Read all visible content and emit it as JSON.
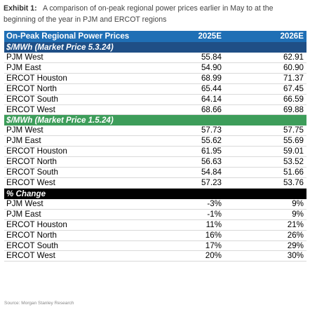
{
  "caption": {
    "label": "Exhibit 1:",
    "text": "A comparison of on-peak regional power prices earlier in May to at the beginning of the year in PJM and ERCOT regions"
  },
  "table": {
    "header": [
      "On-Peak Regional Power Prices",
      "2025E",
      "2026E"
    ],
    "sections": [
      {
        "title": "$/MWh (Market Price 5.3.24)",
        "rows": [
          [
            "PJM West",
            "55.84",
            "62.91"
          ],
          [
            "PJM East",
            "54.90",
            "60.90"
          ],
          [
            "ERCOT Houston",
            "68.99",
            "71.37"
          ],
          [
            "ERCOT North",
            "65.44",
            "67.45"
          ],
          [
            "ERCOT South",
            "64.14",
            "66.59"
          ],
          [
            "ERCOT West",
            "68.66",
            "69.88"
          ]
        ]
      },
      {
        "title": "$/MWh (Market Price 1.5.24)",
        "rows": [
          [
            "PJM West",
            "57.73",
            "57.75"
          ],
          [
            "PJM East",
            "55.62",
            "55.69"
          ],
          [
            "ERCOT Houston",
            "61.95",
            "59.01"
          ],
          [
            "ERCOT North",
            "56.63",
            "53.52"
          ],
          [
            "ERCOT South",
            "54.84",
            "51.66"
          ],
          [
            "ERCOT West",
            "57.23",
            "53.76"
          ]
        ]
      },
      {
        "title": "% Change",
        "rows": [
          [
            "PJM West",
            "-3%",
            "9%"
          ],
          [
            "PJM East",
            "-1%",
            "9%"
          ],
          [
            "ERCOT Houston",
            "11%",
            "21%"
          ],
          [
            "ERCOT North",
            "16%",
            "26%"
          ],
          [
            "ERCOT South",
            "17%",
            "29%"
          ],
          [
            "ERCOT West",
            "20%",
            "30%"
          ]
        ]
      }
    ]
  },
  "source": "Source: Morgan Stanley Research",
  "colors": {
    "header_blue": "#1f6fb5",
    "section_blue": "#1f4f86",
    "section_green": "#3d9d5a",
    "section_black": "#000000"
  }
}
